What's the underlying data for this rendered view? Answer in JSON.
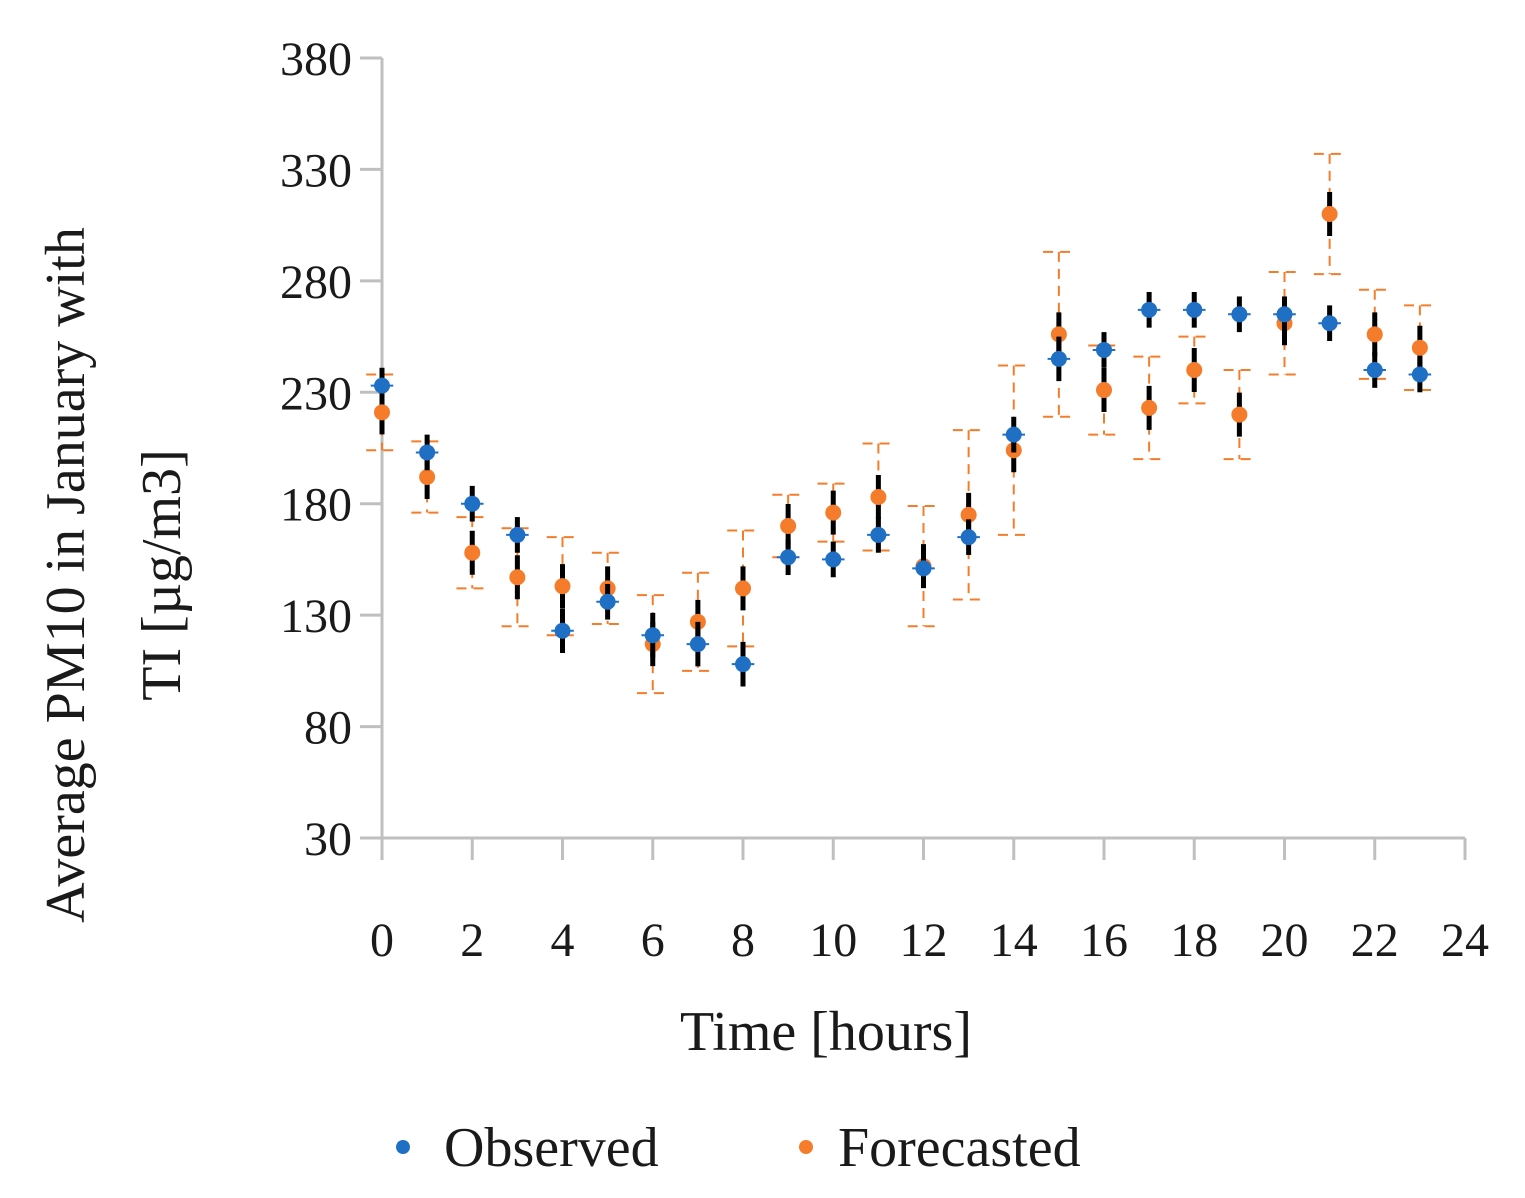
{
  "chart_data": {
    "type": "scatter",
    "title": "",
    "xlabel": "Time [hours]",
    "ylabel_lines": [
      "Average PM10 in January with",
      "TI [µg/m3]"
    ],
    "xlim": [
      0,
      24
    ],
    "ylim": [
      30,
      380
    ],
    "x_ticks": [
      0,
      2,
      4,
      6,
      8,
      10,
      12,
      14,
      16,
      18,
      20,
      22,
      24
    ],
    "y_ticks": [
      30,
      80,
      130,
      180,
      230,
      280,
      330,
      380
    ],
    "grid": false,
    "legend_position": "bottom-center",
    "series": [
      {
        "name": "Observed",
        "color": "#1f6fc4",
        "x": [
          0,
          1,
          2,
          3,
          4,
          5,
          6,
          7,
          8,
          9,
          10,
          11,
          12,
          13,
          14,
          15,
          16,
          17,
          18,
          19,
          20,
          21,
          22,
          23
        ],
        "y": [
          233,
          203,
          180,
          166,
          123,
          136,
          121,
          117,
          108,
          156,
          155,
          166,
          151,
          165,
          211,
          245,
          249,
          267,
          267,
          265,
          265,
          261,
          240,
          238
        ],
        "err_y": [
          8,
          8,
          8,
          8,
          10,
          8,
          10,
          10,
          10,
          8,
          8,
          8,
          8,
          8,
          8,
          10,
          8,
          8,
          8,
          8,
          8,
          8,
          8,
          8
        ],
        "err_x": 0.25,
        "err_y_color": "#000000",
        "err_x_color": "#1f6fc4"
      },
      {
        "name": "Forecasted",
        "color": "#f57c2a",
        "x": [
          0,
          1,
          2,
          3,
          4,
          5,
          6,
          7,
          8,
          9,
          10,
          11,
          12,
          13,
          14,
          15,
          16,
          17,
          18,
          19,
          20,
          21,
          22,
          23
        ],
        "y": [
          221,
          192,
          158,
          147,
          143,
          142,
          117,
          127,
          142,
          170,
          176,
          183,
          152,
          175,
          204,
          256,
          231,
          223,
          240,
          220,
          261,
          310,
          256,
          250
        ],
        "err_y": [
          17,
          16,
          16,
          22,
          22,
          16,
          22,
          22,
          26,
          14,
          13,
          24,
          27,
          38,
          38,
          37,
          20,
          23,
          15,
          20,
          23,
          27,
          20,
          19
        ],
        "err_x": 0.35,
        "err_color": "#f57c2a",
        "err_style": "dashed"
      }
    ]
  }
}
